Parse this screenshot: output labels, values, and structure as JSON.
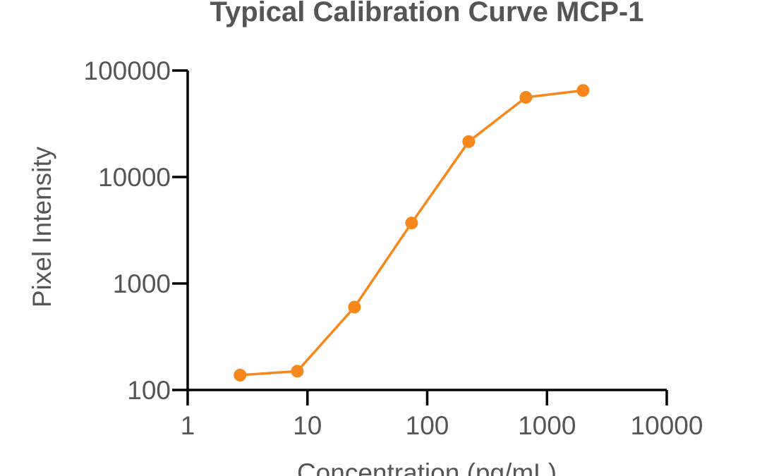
{
  "chart_data": {
    "type": "line",
    "title": "Typical Calibration Curve MCP-1",
    "xlabel": "Concentration (pg/mL)",
    "ylabel": "Pixel Intensity",
    "xscale": "log",
    "yscale": "log",
    "xlim": [
      1,
      10000
    ],
    "ylim": [
      100,
      100000
    ],
    "xticks": [
      "1",
      "10",
      "100",
      "1000",
      "10000"
    ],
    "yticks": [
      "100",
      "1000",
      "10000",
      "100000"
    ],
    "grid": false,
    "series": [
      {
        "color": "#f7861b",
        "x": [
          2.74,
          8.23,
          24.7,
          74.1,
          222,
          667,
          2000
        ],
        "y": [
          138,
          150,
          600,
          3700,
          21500,
          56000,
          65000
        ]
      }
    ]
  }
}
